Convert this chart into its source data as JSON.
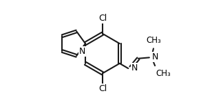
{
  "bg_color": "#ffffff",
  "line_color": "#1a1a1a",
  "text_color": "#000000",
  "line_width": 1.5,
  "font_size": 9.0,
  "figsize": [
    3.08,
    1.55
  ],
  "dpi": 100,
  "xlim": [
    0.0,
    1.0
  ],
  "ylim": [
    0.05,
    0.95
  ]
}
